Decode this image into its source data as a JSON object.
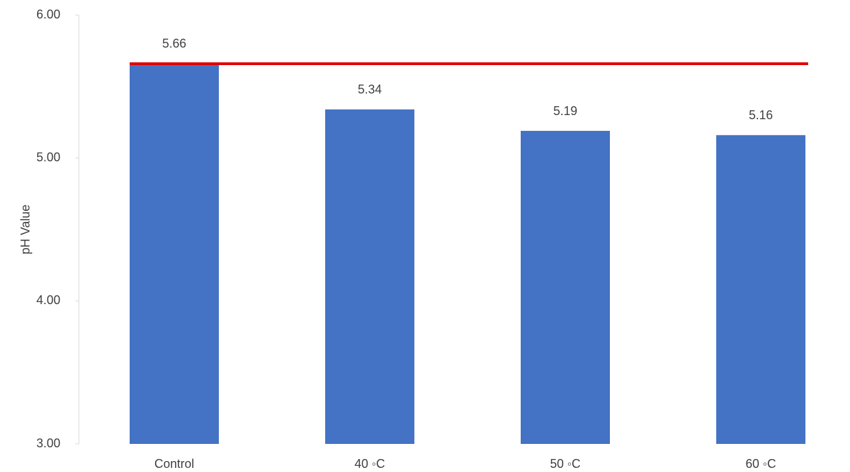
{
  "chart_data": {
    "type": "bar",
    "y_label": "pH Value",
    "categories": [
      "Control",
      "40 ◦C",
      "50 ◦C",
      "60 ◦C"
    ],
    "values": [
      5.66,
      5.34,
      5.19,
      5.16
    ],
    "color": "#4472c4",
    "ylim": [
      3,
      6
    ],
    "yticks": [
      {
        "value": 3,
        "label": "3.00"
      },
      {
        "value": 4,
        "label": "4.00"
      },
      {
        "value": 5,
        "label": "5.00"
      },
      {
        "value": 6,
        "label": "6.00"
      }
    ],
    "reference_line": {
      "value": 5.66,
      "color": "#e00000"
    }
  }
}
